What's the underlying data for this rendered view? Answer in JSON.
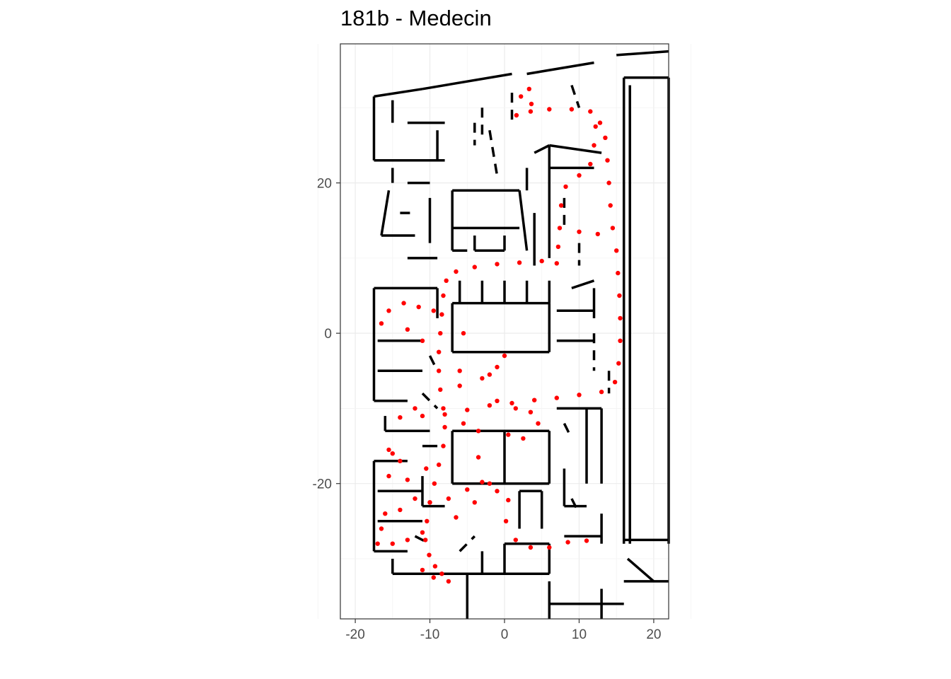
{
  "chart_data": {
    "type": "scatter",
    "title": "181b - Medecin",
    "xlabel": "",
    "ylabel": "",
    "xlim": [
      -22,
      22
    ],
    "ylim": [
      -38,
      38.5
    ],
    "x_ticks": [
      -20,
      -10,
      0,
      10,
      20
    ],
    "y_ticks": [
      -20,
      0,
      20
    ],
    "x_tick_labels": [
      "-20",
      "-10",
      "0",
      "10",
      "20"
    ],
    "y_tick_labels": [
      "-20",
      "0",
      "20"
    ],
    "grid": true,
    "legend": "none",
    "point_color": "#ff0000",
    "wall_color": "#000000",
    "series": [
      {
        "values": [
          [
            -7.5,
            -33
          ],
          [
            -8.4,
            -32
          ],
          [
            -9.3,
            -31
          ],
          [
            -10.1,
            -29.5
          ],
          [
            -10.6,
            -27.5
          ],
          [
            -10.4,
            -25
          ],
          [
            -10.0,
            -22.5
          ],
          [
            -9.4,
            -20
          ],
          [
            -8.8,
            -17.5
          ],
          [
            -8.2,
            -15
          ],
          [
            -8.0,
            -12.5
          ],
          [
            -8.2,
            -10
          ],
          [
            -8.6,
            -7.5
          ],
          [
            -8.8,
            -5
          ],
          [
            -8.8,
            -2.5
          ],
          [
            -8.6,
            0
          ],
          [
            -8.4,
            2.5
          ],
          [
            -8.2,
            5
          ],
          [
            -7.8,
            7
          ],
          [
            -6.5,
            8.2
          ],
          [
            -4,
            8.8
          ],
          [
            -1,
            9.2
          ],
          [
            2,
            9.4
          ],
          [
            5,
            9.6
          ],
          [
            7,
            9.3
          ],
          [
            7.2,
            11.5
          ],
          [
            7.4,
            14
          ],
          [
            7.6,
            17
          ],
          [
            8.2,
            19.5
          ],
          [
            10,
            21
          ],
          [
            11.5,
            22.5
          ],
          [
            12,
            25
          ],
          [
            12.2,
            27.5
          ],
          [
            11.5,
            29.5
          ],
          [
            9,
            29.8
          ],
          [
            6,
            29.8
          ],
          [
            3.5,
            29.5
          ],
          [
            1.6,
            29
          ],
          [
            2.2,
            31.5
          ],
          [
            3.3,
            32.5
          ],
          [
            12.8,
            28
          ],
          [
            13.5,
            26
          ],
          [
            13.8,
            23
          ],
          [
            14,
            20
          ],
          [
            14.2,
            17
          ],
          [
            14.5,
            14
          ],
          [
            15,
            11
          ],
          [
            15.2,
            8
          ],
          [
            15.4,
            5
          ],
          [
            15.5,
            2
          ],
          [
            15.5,
            -1
          ],
          [
            15.3,
            -4
          ],
          [
            14.8,
            -6.5
          ],
          [
            13,
            -7.8
          ],
          [
            10,
            -8.2
          ],
          [
            7,
            -8.6
          ],
          [
            4,
            -8.9
          ],
          [
            1,
            -9.3
          ],
          [
            -2,
            -9.6
          ],
          [
            -5,
            -10.2
          ],
          [
            -8,
            -10.8
          ],
          [
            -11,
            -11
          ],
          [
            -14,
            -11.2
          ],
          [
            -15.5,
            -15.5
          ],
          [
            -15,
            -16
          ],
          [
            -14,
            -17
          ],
          [
            -15.5,
            -19
          ],
          [
            -13,
            -19.5
          ],
          [
            -10.5,
            -18
          ],
          [
            -16.5,
            -26
          ],
          [
            -17,
            -28
          ],
          [
            -15,
            -28
          ],
          [
            -13,
            -27.5
          ],
          [
            -11,
            -26.5
          ],
          [
            -14,
            -23.5
          ],
          [
            -16,
            -24
          ],
          [
            -12,
            -22
          ],
          [
            -10,
            -22.5
          ],
          [
            -7.5,
            -22
          ],
          [
            -5,
            -20.8
          ],
          [
            -3,
            -19.8
          ],
          [
            -2,
            -20
          ],
          [
            -1,
            -21
          ],
          [
            0.5,
            -22.2
          ],
          [
            0.2,
            -25
          ],
          [
            1.5,
            -27.5
          ],
          [
            3.5,
            -28.5
          ],
          [
            6,
            -28.5
          ],
          [
            8.5,
            -27.8
          ],
          [
            11,
            -27.6
          ],
          [
            -3.5,
            -16.5
          ],
          [
            -3.5,
            -13
          ],
          [
            -5.5,
            -12
          ],
          [
            -2,
            -5.5
          ],
          [
            -1,
            -4.5
          ],
          [
            0,
            -3
          ],
          [
            -3,
            -6
          ],
          [
            -6,
            -7
          ],
          [
            -1,
            -9
          ],
          [
            1.5,
            -10
          ],
          [
            3.5,
            -10.5
          ],
          [
            4.5,
            -12
          ],
          [
            2.5,
            -14
          ],
          [
            0.5,
            -13.5
          ],
          [
            -15.5,
            3
          ],
          [
            -13.5,
            4
          ],
          [
            -11.5,
            3.5
          ],
          [
            -9.5,
            3
          ],
          [
            -13,
            0.5
          ],
          [
            -11,
            -1
          ],
          [
            -16.5,
            1.3
          ],
          [
            -12,
            -10
          ],
          [
            -6,
            -5
          ],
          [
            -5.5,
            0
          ],
          [
            -4,
            -22.5
          ],
          [
            -6.5,
            -24.5
          ],
          [
            -9.5,
            -32.5
          ],
          [
            -11,
            -31.5
          ],
          [
            3.6,
            30.5
          ],
          [
            12.5,
            13.2
          ],
          [
            10,
            13.5
          ]
        ]
      }
    ]
  }
}
